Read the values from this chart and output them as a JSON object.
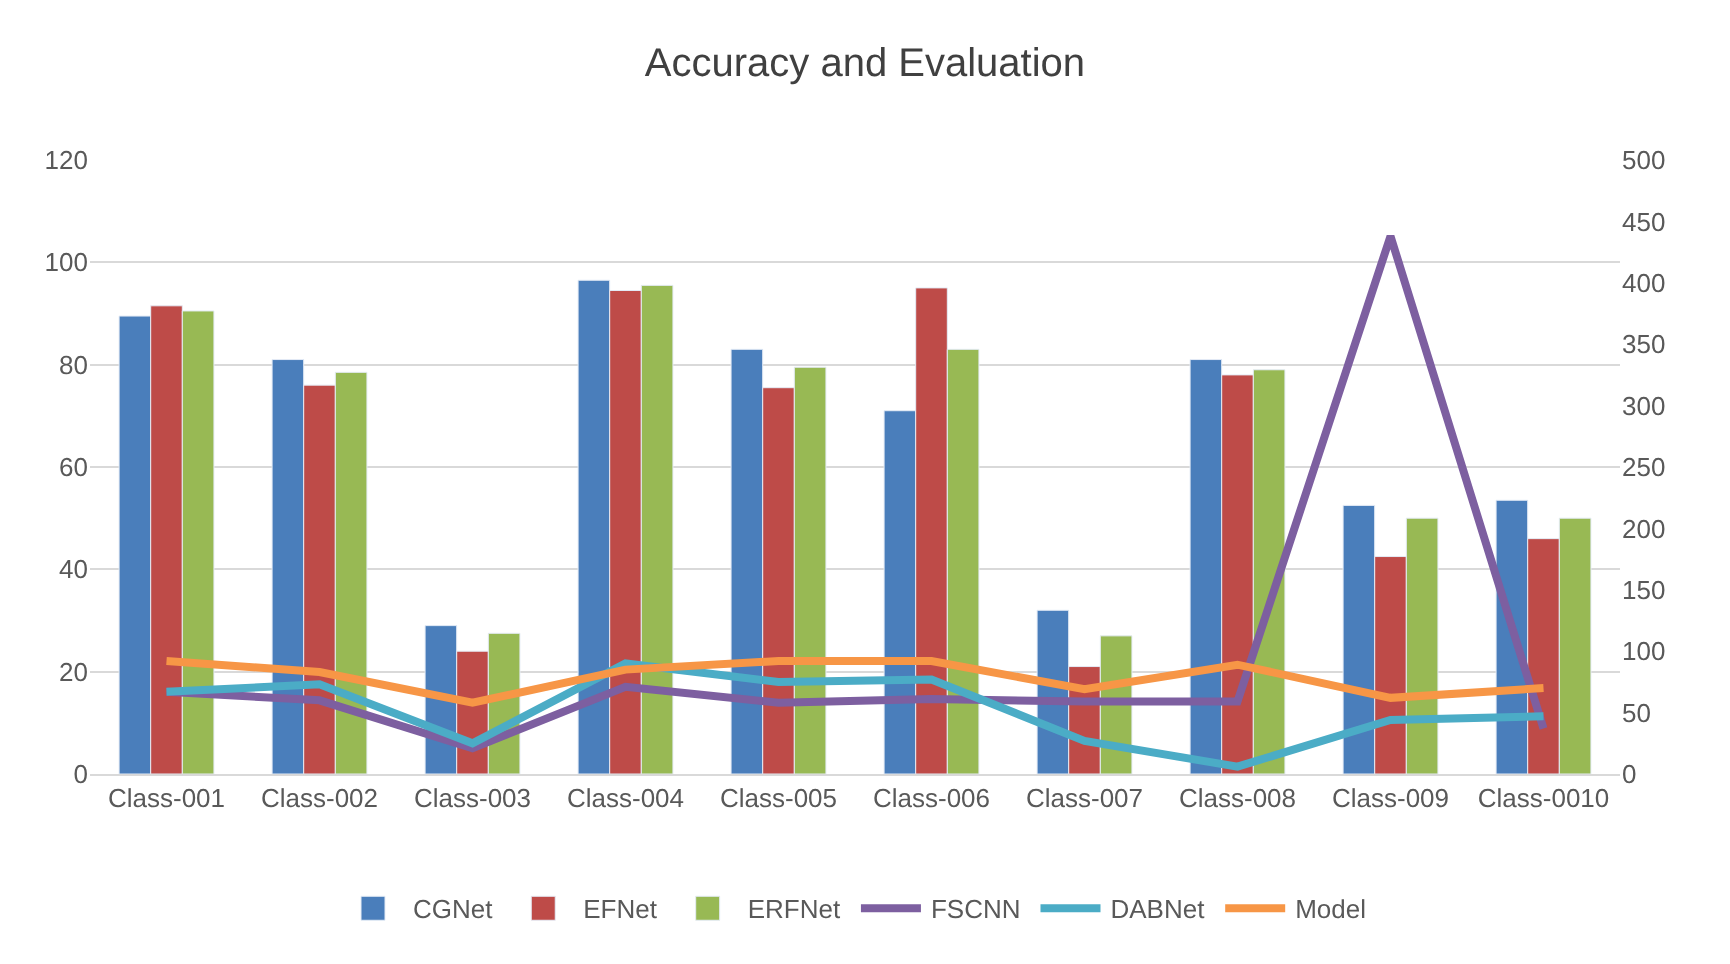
{
  "chart_data": {
    "type": "bar",
    "title": "Accuracy and Evaluation",
    "categories": [
      "Class-001",
      "Class-002",
      "Class-003",
      "Class-004",
      "Class-005",
      "Class-006",
      "Class-007",
      "Class-008",
      "Class-009",
      "Class-0010"
    ],
    "series": [
      {
        "name": "CGNet",
        "color": "#4a7ebb",
        "values": [
          89.5,
          81,
          29,
          96.5,
          83,
          71,
          32,
          81,
          52.5,
          53.5
        ]
      },
      {
        "name": "EFNet",
        "color": "#be4b48",
        "values": [
          91.5,
          76,
          24,
          94.5,
          75.5,
          95,
          21,
          78,
          42.5,
          46
        ]
      },
      {
        "name": "ERFNet",
        "color": "#98b954",
        "values": [
          90.5,
          78.5,
          27.5,
          95.5,
          79.5,
          83,
          27,
          79,
          50,
          50
        ]
      },
      {
        "name": "FSCNN",
        "color": "#7d5fa0",
        "type": "line",
        "axis": "y2",
        "values": [
          67,
          60,
          21,
          71,
          58,
          61,
          59,
          59,
          438,
          37
        ]
      },
      {
        "name": "DABNet",
        "color": "#4bacc6",
        "type": "line",
        "axis": "y2",
        "values": [
          67,
          73,
          25,
          90,
          75,
          77,
          27,
          6,
          44,
          47
        ]
      },
      {
        "name": "Model",
        "color": "#f79646",
        "type": "line",
        "axis": "y2",
        "values": [
          92,
          83,
          58,
          85,
          92,
          92,
          69,
          89,
          62,
          70
        ]
      }
    ],
    "ylim": [
      0,
      120
    ],
    "yticks": [
      0,
      20,
      40,
      60,
      80,
      100,
      120
    ],
    "y2lim": [
      0,
      500
    ],
    "y2ticks": [
      0,
      50,
      100,
      150,
      200,
      250,
      300,
      350,
      400,
      450,
      500
    ],
    "grid": "y",
    "legend": "bottom",
    "marker": "none",
    "line_style": "solid"
  }
}
